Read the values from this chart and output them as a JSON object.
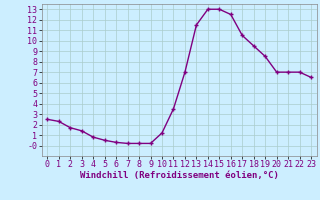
{
  "x": [
    0,
    1,
    2,
    3,
    4,
    5,
    6,
    7,
    8,
    9,
    10,
    11,
    12,
    13,
    14,
    15,
    16,
    17,
    18,
    19,
    20,
    21,
    22,
    23
  ],
  "y": [
    2.5,
    2.3,
    1.7,
    1.4,
    0.8,
    0.5,
    0.3,
    0.2,
    0.2,
    0.2,
    1.2,
    3.5,
    7.0,
    11.5,
    13.0,
    13.0,
    12.5,
    10.5,
    9.5,
    8.5,
    7.0,
    7.0,
    7.0,
    6.5
  ],
  "line_color": "#800080",
  "marker": "+",
  "background_color": "#cceeff",
  "grid_color": "#aacccc",
  "xlabel": "Windchill (Refroidissement éolien,°C)",
  "xlim": [
    -0.5,
    23.5
  ],
  "ylim": [
    -1.0,
    13.5
  ],
  "yticks": [
    0,
    1,
    2,
    3,
    4,
    5,
    6,
    7,
    8,
    9,
    10,
    11,
    12,
    13
  ],
  "ytick_labels": [
    "-0",
    "1",
    "2",
    "3",
    "4",
    "5",
    "6",
    "7",
    "8",
    "9",
    "10",
    "11",
    "12",
    "13"
  ],
  "xticks": [
    0,
    1,
    2,
    3,
    4,
    5,
    6,
    7,
    8,
    9,
    10,
    11,
    12,
    13,
    14,
    15,
    16,
    17,
    18,
    19,
    20,
    21,
    22,
    23
  ],
  "xlabel_fontsize": 6.5,
  "tick_fontsize": 6,
  "marker_size": 3,
  "marker_edge_width": 1.0,
  "line_width": 1.0
}
